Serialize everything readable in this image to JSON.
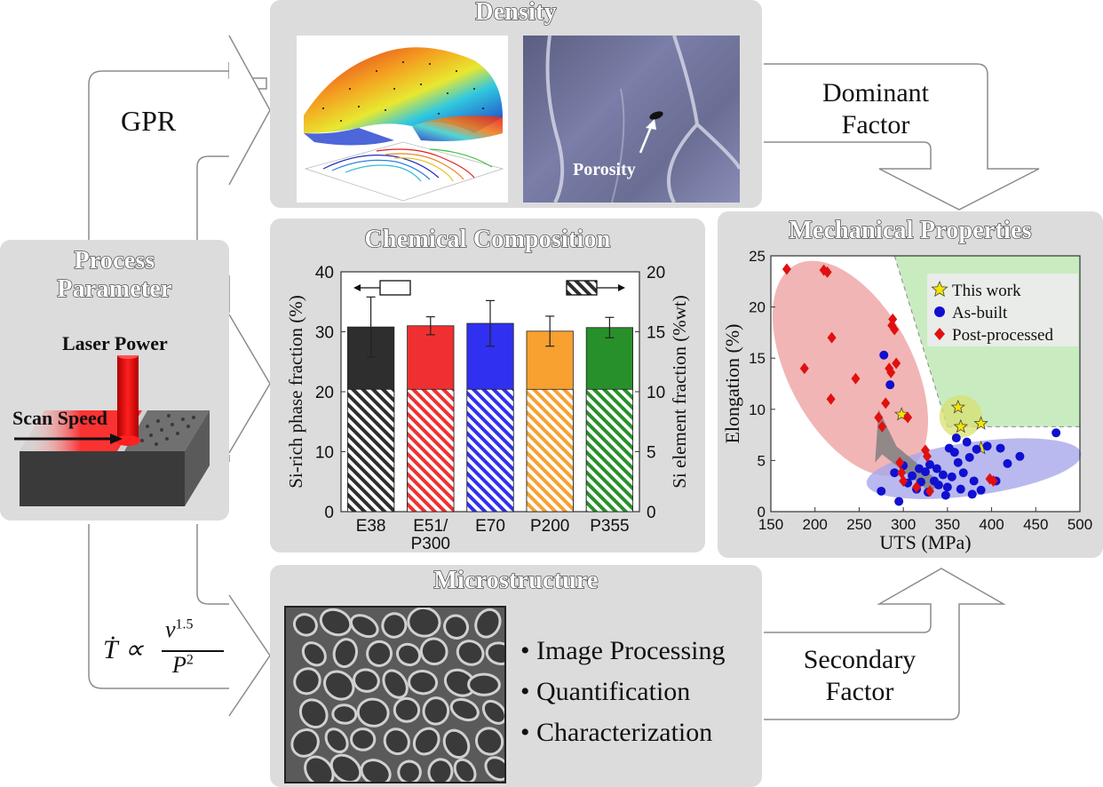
{
  "panels": {
    "density": {
      "title": "Density",
      "porosity_label": "Porosity"
    },
    "chemical": {
      "title": "Chemical Composition"
    },
    "mechanical": {
      "title": "Mechanical Properties"
    },
    "process": {
      "title_line1": "Process",
      "title_line2": "Parameter",
      "laser_label": "Laser Power",
      "scan_label": "Scan Speed"
    },
    "microstructure": {
      "title": "Microstructure",
      "bullets": [
        "Image Processing",
        "Quantification",
        "Characterization"
      ]
    }
  },
  "flow_labels": {
    "gpr": "GPR",
    "dominant_line1": "Dominant",
    "dominant_line2": "Factor",
    "secondary_line1": "Secondary",
    "secondary_line2": "Factor",
    "formula_lhs": "Ṫ ∝",
    "formula_num": "v",
    "formula_num_exp": "1.5",
    "formula_den": "P",
    "formula_den_exp": "2"
  },
  "colors": {
    "panel_bg": "#dcdcdc",
    "arrow_stroke": "#8c8c8c",
    "laser_red": "#e01010",
    "as_built_blue": "#1010d0",
    "post_red": "#e01010",
    "this_work_yellow": "#f5e400",
    "region_red": "#f0a8a8",
    "region_blue": "#a8a8ec",
    "region_green": "#c8ecc0"
  },
  "chart_data": [
    {
      "type": "bar",
      "title": "Chemical Composition",
      "categories": [
        "E38",
        "E51/\nP300",
        "E70",
        "P200",
        "P355"
      ],
      "category_lines": [
        [
          "E38"
        ],
        [
          "E51/",
          "P300"
        ],
        [
          "E70"
        ],
        [
          "P200"
        ],
        [
          "P355"
        ]
      ],
      "ylabel": "Si-rich phase fraction (%)",
      "y2label": "Si element fraction (%wt)",
      "ylim": [
        0,
        40
      ],
      "y2lim": [
        0,
        20
      ],
      "yticks": [
        0,
        10,
        20,
        30,
        40
      ],
      "y2ticks": [
        0,
        5,
        10,
        15,
        20
      ],
      "series": [
        {
          "axis": "left",
          "style": "solid",
          "values": [
            30.8,
            31.0,
            31.4,
            30.1,
            30.7
          ],
          "errors": [
            5.0,
            1.5,
            3.8,
            2.5,
            1.7
          ]
        },
        {
          "axis": "right",
          "style": "hatched",
          "values": [
            10.2,
            10.2,
            10.2,
            10.2,
            10.2
          ]
        }
      ],
      "bar_colors": [
        "#2e2e2e",
        "#f03030",
        "#3030f0",
        "#f8a030",
        "#28902a"
      ],
      "grid": false
    },
    {
      "type": "scatter",
      "title": "Mechanical Properties",
      "xlabel": "UTS (MPa)",
      "ylabel": "Elongation (%)",
      "xlim": [
        150,
        500
      ],
      "ylim": [
        0,
        25
      ],
      "xticks": [
        150,
        200,
        250,
        300,
        350,
        400,
        450,
        500
      ],
      "yticks": [
        0,
        5,
        10,
        15,
        20,
        25
      ],
      "legend_position": "top-right",
      "series": [
        {
          "name": "This work",
          "marker": "star",
          "color": "#f5e400",
          "points": [
            [
              362,
              10.2
            ],
            [
              365,
              8.3
            ],
            [
              388,
              8.6
            ],
            [
              388,
              6.2
            ],
            [
              298,
              9.5
            ]
          ]
        },
        {
          "name": "As-built",
          "marker": "circle",
          "color": "#1010d0",
          "points": [
            [
              275,
              2.0
            ],
            [
              278,
              15.3
            ],
            [
              285,
              12.4
            ],
            [
              290,
              3.8
            ],
            [
              295,
              1.0
            ],
            [
              300,
              4.5
            ],
            [
              305,
              2.8
            ],
            [
              310,
              3.5
            ],
            [
              315,
              2.2
            ],
            [
              318,
              4.2
            ],
            [
              320,
              2.9
            ],
            [
              325,
              3.9
            ],
            [
              328,
              1.9
            ],
            [
              330,
              4.6
            ],
            [
              335,
              3.0
            ],
            [
              338,
              4.2
            ],
            [
              340,
              2.6
            ],
            [
              345,
              3.6
            ],
            [
              348,
              1.6
            ],
            [
              350,
              2.4
            ],
            [
              352,
              6.2
            ],
            [
              355,
              3.4
            ],
            [
              358,
              5.8
            ],
            [
              360,
              7.2
            ],
            [
              362,
              4.8
            ],
            [
              365,
              2.2
            ],
            [
              368,
              3.8
            ],
            [
              372,
              6.8
            ],
            [
              375,
              5.3
            ],
            [
              378,
              1.7
            ],
            [
              380,
              3.0
            ],
            [
              383,
              6.1
            ],
            [
              388,
              2.1
            ],
            [
              395,
              6.4
            ],
            [
              405,
              3.0
            ],
            [
              410,
              6.2
            ],
            [
              418,
              4.7
            ],
            [
              432,
              5.4
            ],
            [
              473,
              7.7
            ]
          ]
        },
        {
          "name": "Post-processed",
          "marker": "diamond",
          "color": "#e01010",
          "points": [
            [
              168,
              23.7
            ],
            [
              188,
              14.0
            ],
            [
              210,
              23.6
            ],
            [
              214,
              23.4
            ],
            [
              219,
              17.0
            ],
            [
              218,
              11.0
            ],
            [
              246,
              13.0
            ],
            [
              272,
              9.2
            ],
            [
              276,
              8.3
            ],
            [
              280,
              10.6
            ],
            [
              284,
              14.0
            ],
            [
              286,
              13.6
            ],
            [
              287,
              18.2
            ],
            [
              288,
              18.8
            ],
            [
              290,
              17.8
            ],
            [
              292,
              14.5
            ],
            [
              296,
              4.8
            ],
            [
              298,
              3.8
            ],
            [
              300,
              3.0
            ],
            [
              305,
              9.2
            ],
            [
              315,
              2.4
            ],
            [
              325,
              6.0
            ],
            [
              327,
              5.4
            ],
            [
              330,
              2.0
            ],
            [
              398,
              3.2
            ],
            [
              402,
              3.0
            ]
          ]
        }
      ],
      "regions": [
        "post-processed range",
        "as-built range",
        "target region"
      ],
      "grid": false
    }
  ]
}
